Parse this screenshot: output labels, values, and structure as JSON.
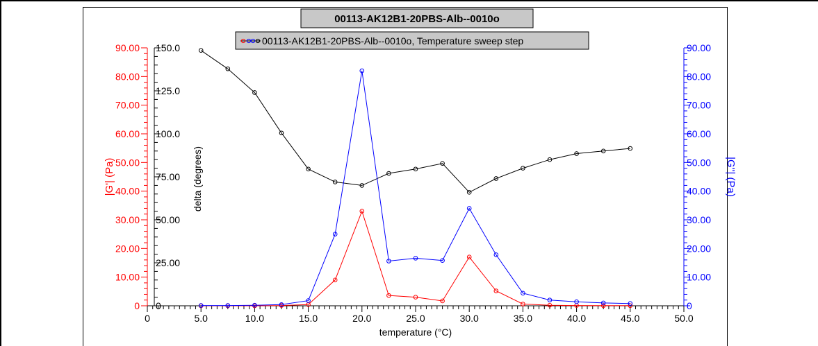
{
  "chart_data": {
    "type": "line",
    "title": "00113-AK12B1-20PBS-Alb--0010o",
    "legend_label": "00113-AK12B1-20PBS-Alb--0010o, Temperature sweep step",
    "legend_position": "top-center",
    "xlabel": "temperature (°C)",
    "xlim": [
      0,
      50
    ],
    "x_ticks": [
      "0",
      "5.0",
      "10.0",
      "15.0",
      "20.0",
      "25.0",
      "30.0",
      "35.0",
      "40.0",
      "45.0",
      "50.0"
    ],
    "x": [
      5,
      7.5,
      10,
      12.5,
      15,
      17.5,
      20,
      22.5,
      25,
      27.5,
      30,
      32.5,
      35,
      37.5,
      40,
      42.5,
      45
    ],
    "axes": {
      "g_prime": {
        "label": "|G'| (Pa)",
        "color": "#ff0000",
        "side": "left-outer",
        "ylim": [
          0,
          90
        ],
        "ticks": [
          "0",
          "10.00",
          "20.00",
          "30.00",
          "40.00",
          "50.00",
          "60.00",
          "70.00",
          "80.00",
          "90.00"
        ]
      },
      "delta": {
        "label": "delta (degrees)",
        "color": "#000000",
        "side": "left-inner",
        "ylim": [
          0,
          150
        ],
        "ticks": [
          "0",
          "25.00",
          "50.00",
          "75.00",
          "100.0",
          "125.0",
          "150.0"
        ]
      },
      "g_double_prime": {
        "label": "|G''| (Pa)",
        "color": "#0000ff",
        "side": "right",
        "ylim": [
          0,
          90
        ],
        "ticks": [
          "0",
          "10.00",
          "20.00",
          "30.00",
          "40.00",
          "50.00",
          "60.00",
          "70.00",
          "80.00",
          "90.00"
        ]
      }
    },
    "series": [
      {
        "axis": "delta",
        "color": "#000000",
        "values": [
          148.5,
          137.8,
          124.0,
          100.5,
          79.5,
          72.0,
          70.0,
          77.0,
          79.5,
          82.8,
          66.0,
          74.0,
          80.0,
          85.0,
          88.5,
          90.0,
          91.5
        ]
      },
      {
        "axis": "g_prime",
        "color": "#ff0000",
        "values": [
          0,
          0,
          0,
          0.1,
          0.4,
          9.0,
          33.0,
          3.6,
          3.0,
          1.7,
          17.0,
          5.2,
          0.6,
          0.2,
          0.1,
          0.05,
          0.05
        ]
      },
      {
        "axis": "g_double_prime",
        "color": "#0000ff",
        "values": [
          0.1,
          0.1,
          0.2,
          0.4,
          1.8,
          25.0,
          82.0,
          15.6,
          16.6,
          15.8,
          34.0,
          17.8,
          4.4,
          2.0,
          1.4,
          1.0,
          0.8
        ]
      }
    ]
  }
}
